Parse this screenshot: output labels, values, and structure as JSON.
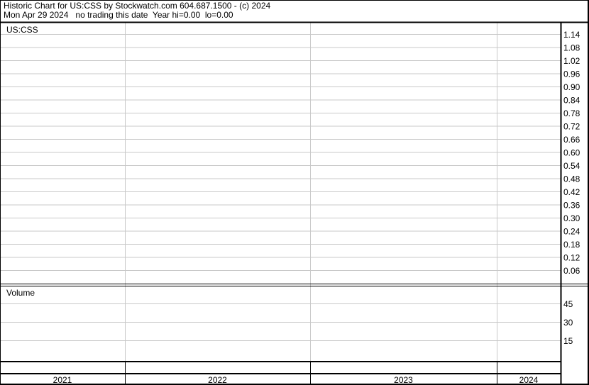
{
  "header": {
    "line1": "Historic Chart for US:CSS by Stockwatch.com 604.687.1500 - (c) 2024",
    "line2": "Mon Apr 29 2024   no trading this date  Year hi=0.00  lo=0.00"
  },
  "chart_data": [
    {
      "type": "line",
      "title": "US:CSS",
      "series": [],
      "y_ticks": [
        "1.14",
        "1.08",
        "1.02",
        "0.96",
        "0.90",
        "0.84",
        "0.78",
        "0.72",
        "0.66",
        "0.60",
        "0.54",
        "0.48",
        "0.42",
        "0.36",
        "0.30",
        "0.24",
        "0.18",
        "0.12",
        "0.06"
      ],
      "ylim": [
        0,
        1.19
      ],
      "x_ticks": [
        "2021",
        "2022",
        "2023",
        "2024"
      ],
      "grid": true,
      "axis_side": "right"
    },
    {
      "type": "bar",
      "title": "Volume",
      "series": [],
      "y_ticks": [
        "45",
        "30",
        "15"
      ],
      "grid": true
    }
  ],
  "colors": {
    "grid": "#c8c8c8",
    "border": "#000000",
    "background": "#ffffff"
  }
}
